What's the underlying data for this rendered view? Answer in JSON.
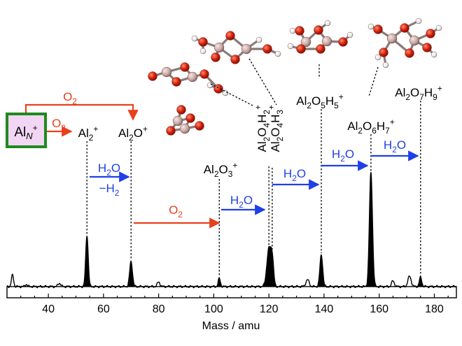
{
  "chart_data": {
    "type": "line",
    "title": "",
    "xlabel": "Mass / amu",
    "ylabel": "",
    "xlim": [
      25,
      188
    ],
    "ylim": [
      0,
      1
    ],
    "x_ticks": [
      "40",
      "60",
      "80",
      "100",
      "120",
      "140",
      "160",
      "180"
    ],
    "x_tick_values": [
      40,
      60,
      80,
      100,
      120,
      140,
      160,
      180
    ],
    "grid": false,
    "filled_peaks": [
      {
        "x": 54,
        "height": 0.45,
        "sigma": 0.45
      },
      {
        "x": 70,
        "height": 0.22,
        "sigma": 0.5
      },
      {
        "x": 102,
        "height": 0.07,
        "sigma": 0.4
      },
      {
        "x": 120,
        "height": 0.33,
        "sigma": 0.75
      },
      {
        "x": 121.2,
        "height": 0.22,
        "sigma": 0.5
      },
      {
        "x": 139,
        "height": 0.28,
        "sigma": 0.5
      },
      {
        "x": 157,
        "height": 1.0,
        "sigma": 0.55
      },
      {
        "x": 175,
        "height": 0.08,
        "sigma": 0.45
      }
    ],
    "baseline_peaks": [
      {
        "x": 27,
        "height": 0.1,
        "sigma": 0.4
      },
      {
        "x": 32,
        "height": 0.02,
        "sigma": 0.4
      },
      {
        "x": 44,
        "height": 0.03,
        "sigma": 0.5
      },
      {
        "x": 80,
        "height": 0.04,
        "sigma": 0.5
      },
      {
        "x": 134,
        "height": 0.06,
        "sigma": 0.6
      },
      {
        "x": 165,
        "height": 0.05,
        "sigma": 0.5
      },
      {
        "x": 171,
        "height": 0.09,
        "sigma": 0.6
      }
    ],
    "annotations": [
      {
        "id": "al2",
        "text": "Al₂⁺",
        "x": 54
      },
      {
        "id": "al2o",
        "text": "Al₂O⁺",
        "x": 70
      },
      {
        "id": "al2o3",
        "text": "Al₂O₃⁺",
        "x": 102
      },
      {
        "id": "al2o4h2",
        "text": "Al₂O₄H₂⁺",
        "x": 120
      },
      {
        "id": "al2o4h3",
        "text": "Al₂O₄H₃⁺",
        "x": 121.2
      },
      {
        "id": "al2o5h5",
        "text": "Al₂O₅H₅⁺",
        "x": 139
      },
      {
        "id": "al2o6h7",
        "text": "Al₂O₆H₇⁺",
        "x": 157
      },
      {
        "id": "al2o7h9",
        "text": "Al₂O₇H₉⁺",
        "x": 175
      }
    ],
    "reactions": [
      {
        "id": "o2-top",
        "text": "O₂",
        "from": "AlN⁺",
        "to": "Al₂O⁺",
        "color": "#e8401c"
      },
      {
        "id": "o2-short",
        "text": "O₂",
        "from": "AlN⁺",
        "to": "Al₂⁺",
        "color": "#e8401c"
      },
      {
        "id": "h2o-h2",
        "text": "H₂O",
        "text2": "−H₂",
        "from": "Al₂⁺",
        "to": "Al₂O⁺",
        "color": "#1f3fe8"
      },
      {
        "id": "o2-mid",
        "text": "O₂",
        "from": "Al₂O⁺",
        "to": "Al₂O₃⁺",
        "color": "#e8401c"
      },
      {
        "id": "h2o-1",
        "text": "H₂O",
        "from": "Al₂O₃⁺",
        "to": "Al₂O₄H₂⁺",
        "color": "#1f3fe8"
      },
      {
        "id": "h2o-2",
        "text": "H₂O",
        "from": "Al₂O₄H₃⁺",
        "to": "Al₂O₅H₅⁺",
        "color": "#1f3fe8"
      },
      {
        "id": "h2o-3",
        "text": "H₂O",
        "from": "Al₂O₅H₅⁺",
        "to": "Al₂O₆H₇⁺",
        "color": "#1f3fe8"
      },
      {
        "id": "h2o-4",
        "text": "H₂O",
        "from": "Al₂O₆H₇⁺",
        "to": "Al₂O₇H₉⁺",
        "color": "#1f3fe8"
      }
    ],
    "source_box": {
      "prefix": "Al",
      "subscript": "N",
      "charge": "+",
      "fill": "#f3d6f3",
      "border": "#1e8a1e"
    },
    "colors": {
      "spectrum": "#000000",
      "o2_arrow": "#e8401c",
      "h2o_arrow": "#1f3fe8",
      "atom_o": "#d61f0a",
      "atom_al": "#c9a9a6",
      "atom_h": "#ffffff"
    }
  }
}
